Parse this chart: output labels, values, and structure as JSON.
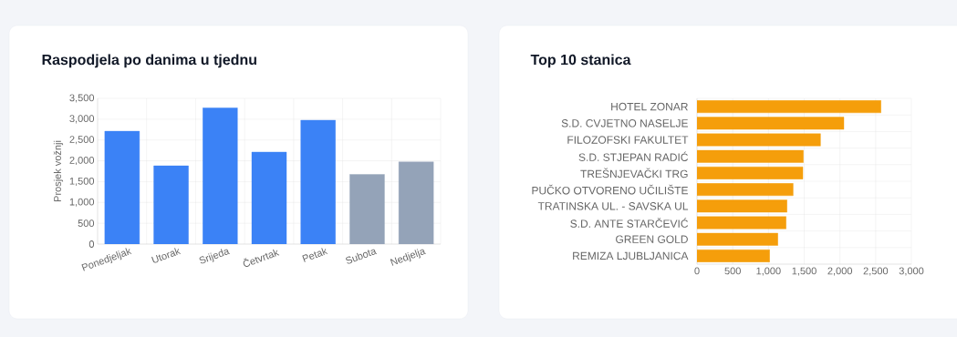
{
  "chart_data": [
    {
      "type": "bar",
      "title": "Raspodjela po danima u tjednu",
      "ylabel": "Prosjek vožnji",
      "categories": [
        "Ponedjeljak",
        "Utorak",
        "Srijeda",
        "Četvrtak",
        "Petak",
        "Subota",
        "Nedjelja"
      ],
      "values": [
        2710,
        1880,
        3270,
        2210,
        2975,
        1675,
        1975
      ],
      "colors": [
        "#3b82f6",
        "#3b82f6",
        "#3b82f6",
        "#3b82f6",
        "#3b82f6",
        "#94a3b8",
        "#94a3b8"
      ],
      "ylim": [
        0,
        3500
      ],
      "yticks": [
        0,
        500,
        {
          "value": 1000,
          "label": "1,000"
        },
        {
          "value": 1500,
          "label": "1,500"
        },
        {
          "value": 2000,
          "label": "2,000"
        },
        {
          "value": 2500,
          "label": "2,500"
        },
        {
          "value": 3000,
          "label": "3,000"
        },
        {
          "value": 3500,
          "label": "3,500"
        }
      ],
      "grid": true
    },
    {
      "type": "bar",
      "title": "Top 10 stanica",
      "orientation": "horizontal",
      "categories": [
        "HOTEL ZONAR",
        "S.D. CVJETNO NASELJE",
        "FILOZOFSKI FAKULTET",
        "S.D. STJEPAN RADIĆ",
        "TREŠNJEVAČKI TRG",
        "PUČKO OTVORENO UČILIŠTE",
        "TRATINSKA UL. - SAVSKA UL",
        "S.D. ANTE STARČEVIĆ",
        "GREEN GOLD",
        "REMIZA LJUBLJANICA"
      ],
      "values": [
        2575,
        2055,
        1728,
        1489,
        1481,
        1345,
        1260,
        1247,
        1132,
        1017
      ],
      "color": "#f59e0b",
      "xlim": [
        0,
        3000
      ],
      "xticks": [
        0,
        500,
        {
          "value": 1000,
          "label": "1,000"
        },
        {
          "value": 1500,
          "label": "1,500"
        },
        {
          "value": 2000,
          "label": "2,000"
        },
        {
          "value": 2500,
          "label": "2,500"
        },
        {
          "value": 3000,
          "label": "3,000"
        }
      ],
      "grid": true
    }
  ]
}
